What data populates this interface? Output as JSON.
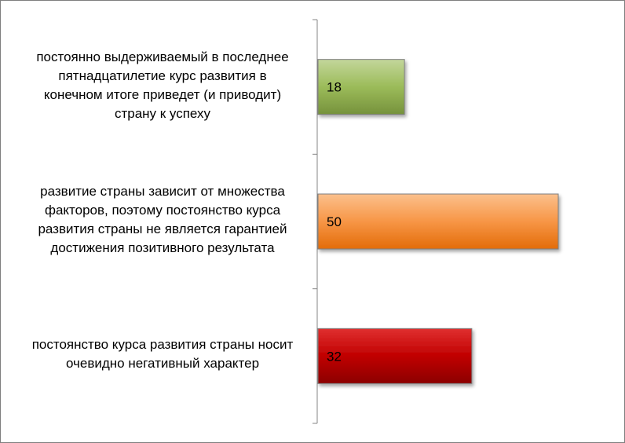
{
  "chart_data": {
    "type": "bar",
    "orientation": "horizontal",
    "categories": [
      "постоянно выдерживаемый в последнее пятнадцатилетие курс развития в конечном итоге приведет (и приводит) страну к успеху",
      "развитие страны зависит от множества факторов, поэтому постоянство курса развития страны не является гарантией достижения позитивного результата",
      "постоянство курса развития страны носит очевидно негативный характер"
    ],
    "category_lines": [
      [
        "постоянно выдерживаемый в последнее",
        "пятнадцатилетие курс развития в",
        "конечном итоге приведет (и приводит)",
        "страну к успеху"
      ],
      [
        "развитие страны зависит от множества",
        "факторов, поэтому постоянство курса",
        "развития страны не является гарантией",
        "достижения позитивного результата"
      ],
      [
        "постоянство курса развития страны носит",
        "очевидно негативный характер"
      ]
    ],
    "values": [
      18,
      50,
      32
    ],
    "data_labels": [
      "18",
      "50",
      "32"
    ],
    "colors": [
      "#9bbb59",
      "#f79646",
      "#c00000"
    ],
    "title": "",
    "xlabel": "",
    "ylabel": "",
    "xlim": [
      0,
      60
    ],
    "grid": false,
    "legend": "none"
  }
}
